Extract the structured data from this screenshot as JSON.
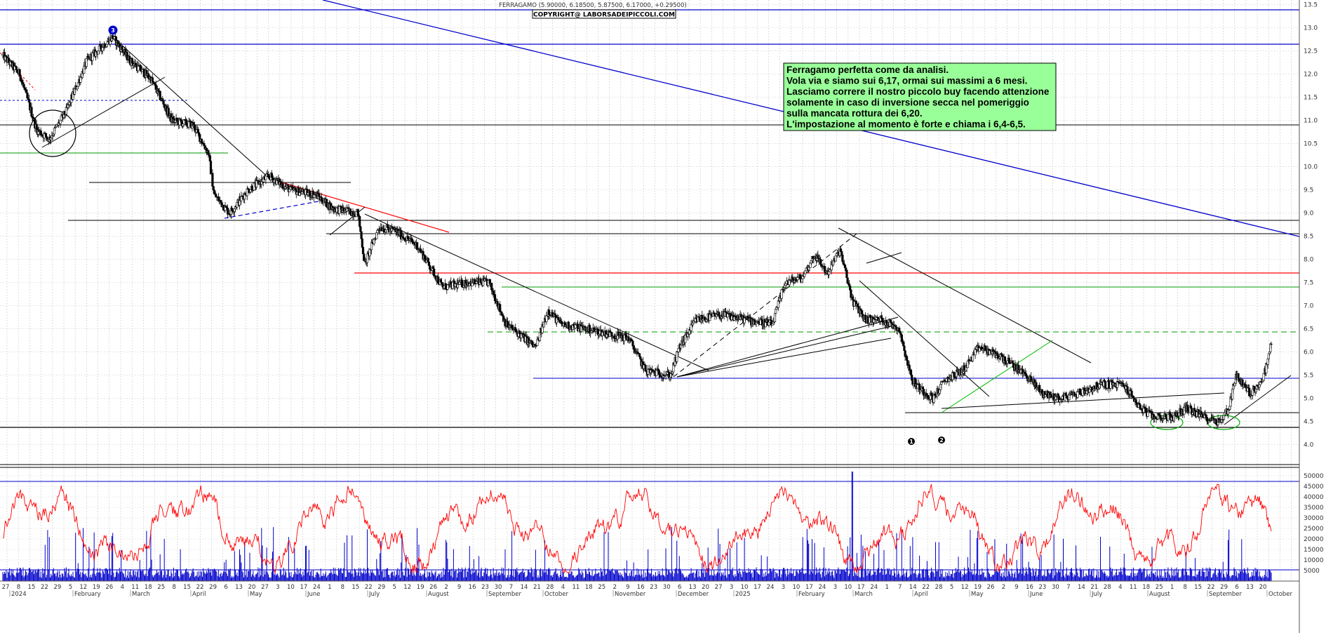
{
  "chart_data": [
    {
      "type": "candlestick",
      "header": "FERRAGAMO (5.90000, 6.18500, 5.87500, 6.17000, +0.29500)",
      "copyright": "COPYRIGHT@ LABORSADEIPICCOLI.COM",
      "ylim": [
        3.6,
        13.6
      ],
      "yticks": [
        "4.0",
        "4.5",
        "5.0",
        "5.5",
        "6.0",
        "6.5",
        "7.0",
        "7.5",
        "8.0",
        "8.5",
        "9.0",
        "9.5",
        "10.0",
        "10.5",
        "11.0",
        "11.5",
        "12.0",
        "12.5",
        "13.0",
        "13.5"
      ],
      "annotation": [
        "Ferragamo perfetta come da analisi.",
        "Vola via e siamo sui 6,17, ormai sui massimi a 6 mesi.",
        "Lasciamo correre il nostro piccolo buy facendo attenzione",
        "solamente in caso di inversione secca nel pomeriggio",
        "sulla mancata rottura dei 6,20.",
        "L'impostazione al momento è forte e chiama i 6,4-6,5."
      ],
      "markers": [
        "3",
        "1",
        "2"
      ],
      "price_path": [
        [
          0,
          12.4
        ],
        [
          20,
          12.0
        ],
        [
          40,
          10.8
        ],
        [
          55,
          10.6
        ],
        [
          75,
          11.2
        ],
        [
          100,
          12.3
        ],
        [
          130,
          12.8
        ],
        [
          150,
          12.3
        ],
        [
          175,
          11.9
        ],
        [
          200,
          11.0
        ],
        [
          225,
          10.9
        ],
        [
          243,
          10.3
        ],
        [
          250,
          9.4
        ],
        [
          268,
          9.0
        ],
        [
          290,
          9.5
        ],
        [
          315,
          9.8
        ],
        [
          340,
          9.5
        ],
        [
          370,
          9.4
        ],
        [
          390,
          9.1
        ],
        [
          420,
          9.0
        ],
        [
          428,
          7.9
        ],
        [
          445,
          8.7
        ],
        [
          465,
          8.6
        ],
        [
          490,
          8.3
        ],
        [
          520,
          7.4
        ],
        [
          550,
          7.5
        ],
        [
          575,
          7.5
        ],
        [
          595,
          6.6
        ],
        [
          610,
          6.4
        ],
        [
          630,
          6.1
        ],
        [
          645,
          6.9
        ],
        [
          660,
          6.6
        ],
        [
          690,
          6.5
        ],
        [
          715,
          6.4
        ],
        [
          740,
          6.3
        ],
        [
          760,
          5.6
        ],
        [
          790,
          5.5
        ],
        [
          800,
          6.1
        ],
        [
          820,
          6.7
        ],
        [
          850,
          6.8
        ],
        [
          880,
          6.7
        ],
        [
          910,
          6.6
        ],
        [
          925,
          7.5
        ],
        [
          945,
          7.6
        ],
        [
          960,
          8.1
        ],
        [
          975,
          7.7
        ],
        [
          990,
          8.2
        ],
        [
          1005,
          7.1
        ],
        [
          1020,
          6.7
        ],
        [
          1040,
          6.7
        ],
        [
          1060,
          6.5
        ],
        [
          1075,
          5.4
        ],
        [
          1085,
          5.2
        ],
        [
          1100,
          5.0
        ],
        [
          1115,
          5.4
        ],
        [
          1135,
          5.6
        ],
        [
          1155,
          6.1
        ],
        [
          1180,
          5.9
        ],
        [
          1210,
          5.5
        ],
        [
          1230,
          5.1
        ],
        [
          1250,
          5.0
        ],
        [
          1270,
          5.1
        ],
        [
          1300,
          5.3
        ],
        [
          1325,
          5.3
        ],
        [
          1345,
          4.8
        ],
        [
          1360,
          4.6
        ],
        [
          1385,
          4.6
        ],
        [
          1400,
          4.8
        ],
        [
          1420,
          4.6
        ],
        [
          1440,
          4.5
        ],
        [
          1450,
          4.8
        ],
        [
          1458,
          5.5
        ],
        [
          1475,
          5.1
        ],
        [
          1490,
          5.4
        ],
        [
          1500,
          6.17
        ]
      ],
      "x_month_labels": [
        "2024",
        "February",
        "March",
        "April",
        "May",
        "June",
        "July",
        "August",
        "September",
        "October",
        "November",
        "December",
        "2025",
        "February",
        "March",
        "April",
        "May",
        "June",
        "July",
        "August",
        "September",
        "October"
      ],
      "x_day_labels": [
        "27",
        "8",
        "15",
        "22",
        "29",
        "5",
        "12",
        "19",
        "26",
        "4",
        "11",
        "18",
        "25",
        "8",
        "15",
        "22",
        "29",
        "6",
        "13",
        "20",
        "27",
        "3",
        "10",
        "17",
        "24",
        "1",
        "8",
        "15",
        "22",
        "29",
        "5",
        "12",
        "19",
        "26",
        "2",
        "9",
        "16",
        "23",
        "30",
        "7",
        "14",
        "21",
        "28",
        "4",
        "11",
        "18",
        "25",
        "2",
        "9",
        "16",
        "23",
        "30",
        "6",
        "13",
        "20",
        "27",
        "3",
        "10",
        "17",
        "24",
        "3",
        "10",
        "17",
        "24",
        "3",
        "10",
        "17",
        "24",
        "1",
        "7",
        "14",
        "22",
        "28",
        "5",
        "12",
        "19",
        "26",
        "2",
        "9",
        "16",
        "23",
        "30",
        "7",
        "14",
        "21",
        "28",
        "4",
        "11",
        "18",
        "25",
        "1",
        "8",
        "15",
        "22",
        "29",
        "6",
        "13",
        "20"
      ]
    },
    {
      "type": "line",
      "ylim": [
        0,
        52000
      ],
      "yticks": [
        "5000",
        "10000",
        "15000",
        "20000",
        "25000",
        "30000",
        "35000",
        "40000",
        "45000",
        "50000"
      ]
    }
  ]
}
